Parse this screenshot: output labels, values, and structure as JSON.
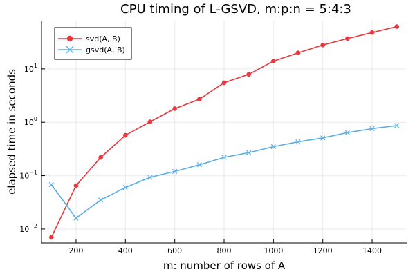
{
  "chart_data": {
    "type": "line",
    "title": "CPU timing of L-GSVD, m:p:n = 5:4:3",
    "xlabel": "m: number of rows of A",
    "ylabel": "elapsed time in seconds",
    "x": [
      100,
      200,
      300,
      400,
      500,
      600,
      700,
      800,
      900,
      1000,
      1100,
      1200,
      1300,
      1400,
      1500
    ],
    "xlim": [
      60,
      1540
    ],
    "ylim": [
      0.0055,
      80
    ],
    "yscale": "log",
    "grid": true,
    "legend_position": "top-left",
    "x_ticks": [
      {
        "value": 200,
        "label": "200"
      },
      {
        "value": 400,
        "label": "400"
      },
      {
        "value": 600,
        "label": "600"
      },
      {
        "value": 800,
        "label": "800"
      },
      {
        "value": 1000,
        "label": "1000"
      },
      {
        "value": 1200,
        "label": "1200"
      },
      {
        "value": 1400,
        "label": "1400"
      }
    ],
    "y_ticks": [
      {
        "value": 0.01,
        "base": "10",
        "exp": "−2"
      },
      {
        "value": 0.1,
        "base": "10",
        "exp": "−1"
      },
      {
        "value": 1,
        "base": "10",
        "exp": "0"
      },
      {
        "value": 10,
        "base": "10",
        "exp": "1"
      }
    ],
    "series": [
      {
        "name": "svd(A, B)",
        "color": "#e8383d",
        "marker": "circle",
        "values": [
          0.007,
          0.065,
          0.22,
          0.57,
          1.02,
          1.8,
          2.7,
          5.5,
          7.9,
          14,
          20,
          28,
          37,
          48,
          62
        ]
      },
      {
        "name": "gsvd(A, B)",
        "color": "#5aaee3",
        "marker": "x",
        "values": [
          0.068,
          0.016,
          0.035,
          0.06,
          0.093,
          0.12,
          0.16,
          0.22,
          0.27,
          0.35,
          0.43,
          0.51,
          0.64,
          0.76,
          0.87
        ]
      }
    ]
  }
}
